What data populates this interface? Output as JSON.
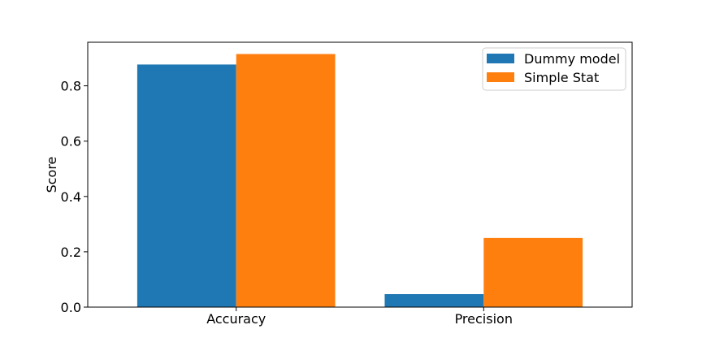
{
  "chart_data": {
    "type": "bar",
    "title": "",
    "xlabel": "",
    "ylabel": "Score",
    "categories": [
      "Accuracy",
      "Precision"
    ],
    "series": [
      {
        "name": "Dummy model",
        "color": "#1f77b4",
        "values": [
          0.877,
          0.047
        ]
      },
      {
        "name": "Simple Stat",
        "color": "#ff7f0e",
        "values": [
          0.915,
          0.25
        ]
      }
    ],
    "ylim": [
      0,
      0.9575
    ],
    "yticks": [
      "0.0",
      "0.2",
      "0.4",
      "0.6",
      "0.8"
    ],
    "grid": false,
    "legend": "top-right"
  }
}
